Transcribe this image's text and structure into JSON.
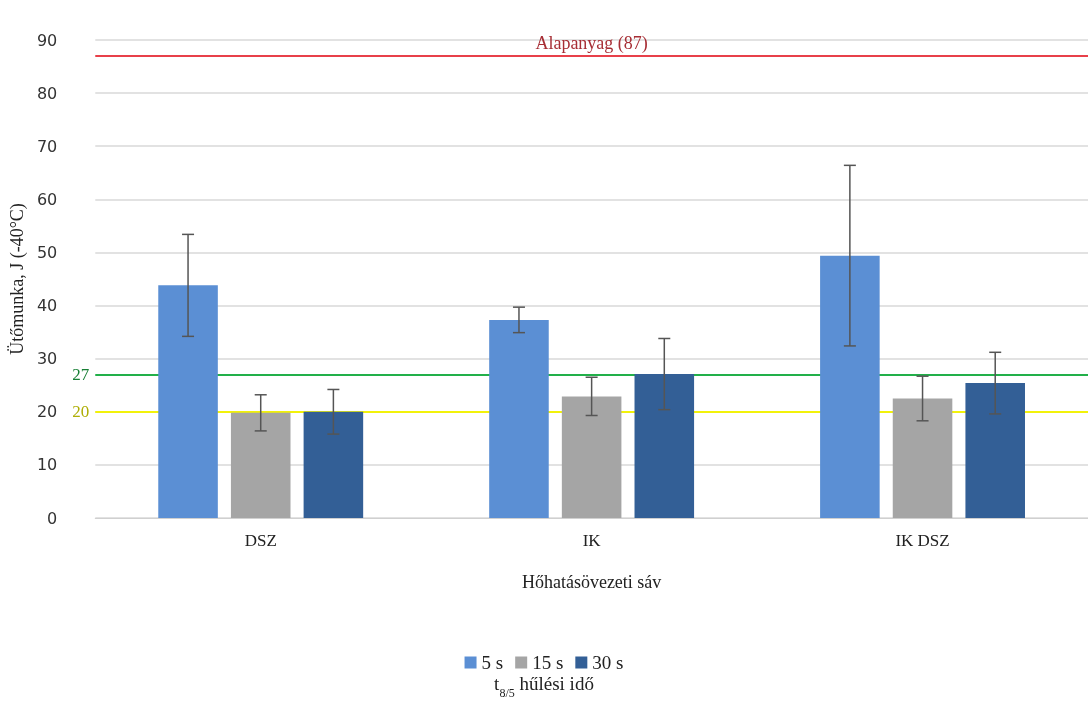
{
  "chart_data": {
    "type": "bar",
    "categories": [
      "DSZ",
      "IK",
      "IK DSZ"
    ],
    "series": [
      {
        "name": "5 s",
        "color": "#5b8fd4",
        "values": [
          43.8,
          37.3,
          49.4
        ],
        "errors": [
          9.6,
          2.4,
          17
        ]
      },
      {
        "name": "15 s",
        "color": "#a5a5a5",
        "values": [
          19.8,
          22.9,
          22.5
        ],
        "errors": [
          3.4,
          3.6,
          4.2
        ]
      },
      {
        "name": "30 s",
        "color": "#335f96",
        "values": [
          20,
          27.1,
          25.4
        ],
        "errors": [
          4.2,
          6.7,
          5.8
        ]
      }
    ],
    "xlabel": "Hőhatásövezeti sáv",
    "ylabel": "Ütőmunka, J (-40°C)",
    "legend_title": "t$_{8/5}$ hűlési idő",
    "ylim": [
      0,
      90
    ],
    "yticks": [
      0,
      10,
      20,
      30,
      40,
      50,
      60,
      70,
      80,
      90
    ],
    "ref_lines": [
      {
        "axis": "y",
        "value": 87,
        "label": "Alapanyag (87)",
        "color": "#e8404a"
      },
      {
        "axis": "y",
        "value": 27,
        "label": "27",
        "color": "#22b04a"
      },
      {
        "axis": "y",
        "value": 20,
        "label": "20",
        "color": "#f2f20a"
      }
    ],
    "grid": "y",
    "legend": "bottom"
  }
}
